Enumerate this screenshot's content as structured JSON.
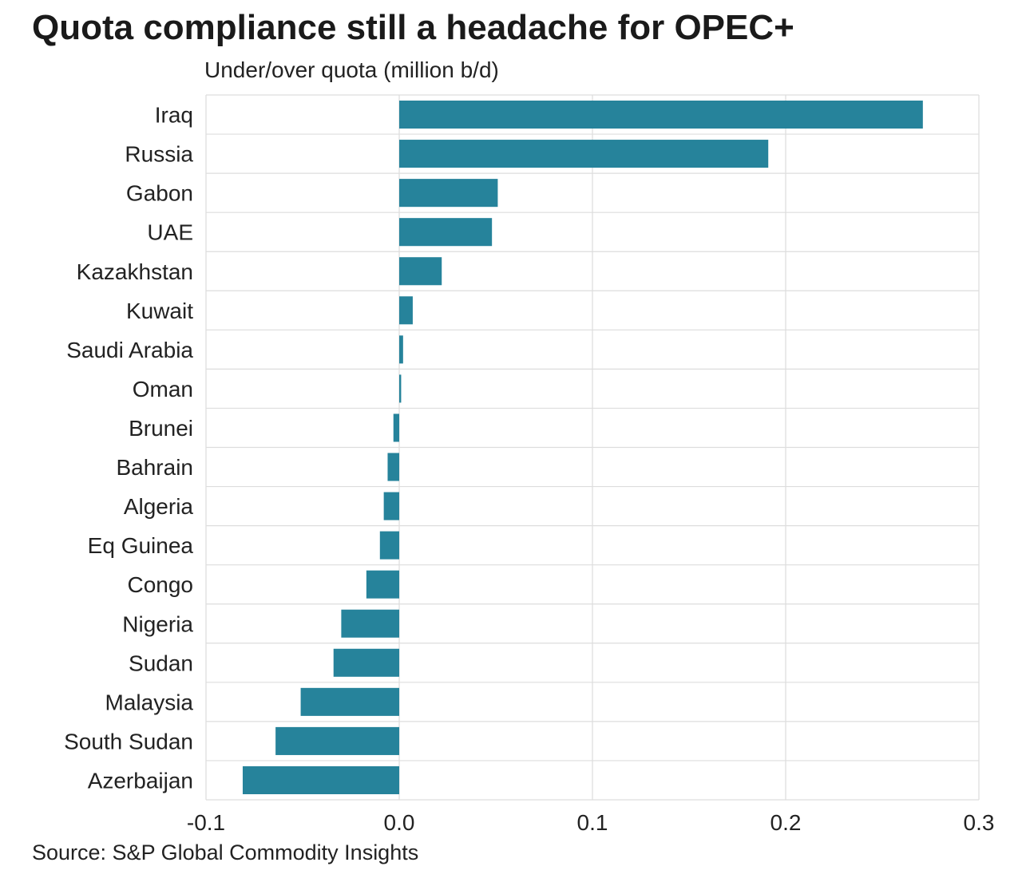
{
  "title": "Quota compliance still a headache for OPEC+",
  "subtitle": "Under/over quota (million b/d)",
  "source": "Source: S&P Global Commodity Insights",
  "colors": {
    "bar": "#26839b",
    "grid": "#dddddd",
    "axis": "#cccccc"
  },
  "chart_data": {
    "type": "bar",
    "orientation": "horizontal",
    "categories": [
      "Iraq",
      "Russia",
      "Gabon",
      "UAE",
      "Kazakhstan",
      "Kuwait",
      "Saudi Arabia",
      "Oman",
      "Brunei",
      "Bahrain",
      "Algeria",
      "Eq Guinea",
      "Congo",
      "Nigeria",
      "Sudan",
      "Malaysia",
      "South Sudan",
      "Azerbaijan"
    ],
    "values": [
      0.271,
      0.191,
      0.051,
      0.048,
      0.022,
      0.007,
      0.002,
      0.001,
      -0.003,
      -0.006,
      -0.008,
      -0.01,
      -0.017,
      -0.03,
      -0.034,
      -0.051,
      -0.064,
      -0.081
    ],
    "xlim": [
      -0.1,
      0.3
    ],
    "xticks": [
      -0.1,
      0.0,
      0.1,
      0.2,
      0.3
    ],
    "xtick_labels": [
      "-0.1",
      "0.0",
      "0.1",
      "0.2",
      "0.3"
    ],
    "grid": true,
    "legend": "none"
  }
}
